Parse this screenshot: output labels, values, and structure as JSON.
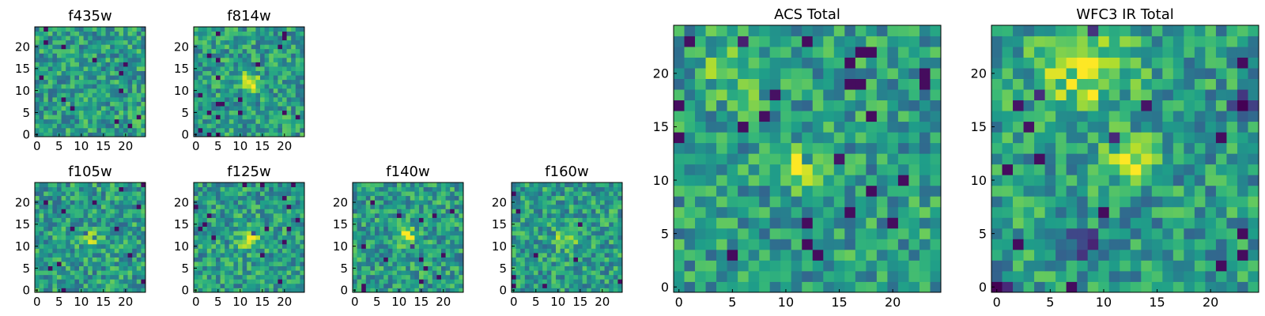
{
  "figure": {
    "panels": [
      {
        "id": "f435w",
        "title": "f435w",
        "xticks": [
          "0",
          "5",
          "10",
          "15",
          "20"
        ],
        "yticks": [
          "0",
          "5",
          "10",
          "15",
          "20"
        ]
      },
      {
        "id": "f814w",
        "title": "f814w",
        "xticks": [
          "0",
          "5",
          "10",
          "15",
          "20"
        ],
        "yticks": [
          "0",
          "5",
          "10",
          "15",
          "20"
        ]
      },
      {
        "id": "f105w",
        "title": "f105w",
        "xticks": [
          "0",
          "5",
          "10",
          "15",
          "20"
        ],
        "yticks": [
          "0",
          "5",
          "10",
          "15",
          "20"
        ]
      },
      {
        "id": "f125w",
        "title": "f125w",
        "xticks": [
          "0",
          "5",
          "10",
          "15",
          "20"
        ],
        "yticks": [
          "0",
          "5",
          "10",
          "15",
          "20"
        ]
      },
      {
        "id": "f140w",
        "title": "f140w",
        "xticks": [
          "0",
          "5",
          "10",
          "15",
          "20"
        ],
        "yticks": [
          "0",
          "5",
          "10",
          "15",
          "20"
        ]
      },
      {
        "id": "f160w",
        "title": "f160w",
        "xticks": [
          "0",
          "5",
          "10",
          "15",
          "20"
        ],
        "yticks": [
          "0",
          "5",
          "10",
          "15",
          "20"
        ]
      },
      {
        "id": "acs",
        "title": "ACS Total",
        "xticks": [
          "0",
          "5",
          "10",
          "15",
          "20"
        ],
        "yticks": [
          "0",
          "5",
          "10",
          "15",
          "20"
        ]
      },
      {
        "id": "wfc3",
        "title": "WFC3 IR Total",
        "xticks": [
          "0",
          "5",
          "10",
          "15",
          "20"
        ],
        "yticks": [
          "0",
          "5",
          "10",
          "15",
          "20"
        ]
      }
    ]
  },
  "chart_data": [
    {
      "type": "heatmap",
      "title": "f435w",
      "grid_size": [
        25,
        25
      ],
      "xlim": [
        -0.5,
        24.5
      ],
      "ylim": [
        -0.5,
        24.5
      ],
      "colormap": "viridis",
      "features": []
    },
    {
      "type": "heatmap",
      "title": "f814w",
      "grid_size": [
        25,
        25
      ],
      "xlim": [
        -0.5,
        24.5
      ],
      "ylim": [
        -0.5,
        24.5
      ],
      "colormap": "viridis",
      "features": [
        {
          "x": 12,
          "y": 12,
          "sigma": 1.4,
          "amp": 0.45
        }
      ]
    },
    {
      "type": "heatmap",
      "title": "f105w",
      "grid_size": [
        25,
        25
      ],
      "xlim": [
        -0.5,
        24.5
      ],
      "ylim": [
        -0.5,
        24.5
      ],
      "colormap": "viridis",
      "features": [
        {
          "x": 12,
          "y": 12,
          "sigma": 1.4,
          "amp": 0.45
        }
      ]
    },
    {
      "type": "heatmap",
      "title": "f125w",
      "grid_size": [
        25,
        25
      ],
      "xlim": [
        -0.5,
        24.5
      ],
      "ylim": [
        -0.5,
        24.5
      ],
      "colormap": "viridis",
      "features": [
        {
          "x": 12,
          "y": 12,
          "sigma": 1.8,
          "amp": 0.3
        }
      ]
    },
    {
      "type": "heatmap",
      "title": "f140w",
      "grid_size": [
        25,
        25
      ],
      "xlim": [
        -0.5,
        24.5
      ],
      "ylim": [
        -0.5,
        24.5
      ],
      "colormap": "viridis",
      "features": [
        {
          "x": 12,
          "y": 12,
          "sigma": 1.4,
          "amp": 0.45
        }
      ]
    },
    {
      "type": "heatmap",
      "title": "f160w",
      "grid_size": [
        25,
        25
      ],
      "xlim": [
        -0.5,
        24.5
      ],
      "ylim": [
        -0.5,
        24.5
      ],
      "colormap": "viridis",
      "features": [
        {
          "x": 12,
          "y": 12,
          "sigma": 1.6,
          "amp": 0.35
        }
      ]
    },
    {
      "type": "heatmap",
      "title": "ACS Total",
      "grid_size": [
        25,
        25
      ],
      "xlim": [
        -0.5,
        24.5
      ],
      "ylim": [
        -0.5,
        24.5
      ],
      "colormap": "viridis",
      "features": [
        {
          "x": 12,
          "y": 11.5,
          "sigma": 1.3,
          "amp": 0.45
        },
        {
          "x": 5,
          "y": 20,
          "sigma": 2.0,
          "amp": 0.2
        }
      ]
    },
    {
      "type": "heatmap",
      "title": "WFC3 IR Total",
      "grid_size": [
        25,
        25
      ],
      "xlim": [
        -0.5,
        24.5
      ],
      "ylim": [
        -0.5,
        24.5
      ],
      "colormap": "viridis",
      "features": [
        {
          "x": 12.5,
          "y": 12,
          "sigma": 1.3,
          "amp": 0.4
        },
        {
          "x": 8,
          "y": 20,
          "sigma": 3.0,
          "amp": 0.3
        },
        {
          "x": 0.5,
          "y": 0,
          "sigma": 0.8,
          "amp": -0.6
        },
        {
          "x": 8,
          "y": 4,
          "sigma": 1.0,
          "amp": -0.5
        },
        {
          "x": 23,
          "y": 17,
          "sigma": 0.8,
          "amp": -0.45
        }
      ]
    }
  ]
}
